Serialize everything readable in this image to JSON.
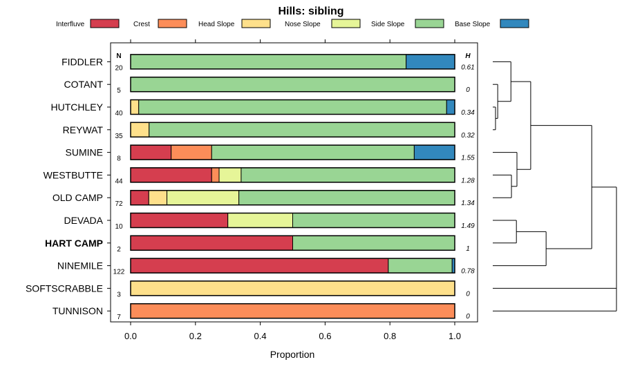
{
  "chart_data": {
    "type": "bar",
    "orientation": "horizontal-stacked",
    "title": "Hills: sibling",
    "xlabel": "Proportion",
    "ylabel": "",
    "xlim": [
      0,
      1
    ],
    "xticks": [
      "0.0",
      "0.2",
      "0.4",
      "0.6",
      "0.8",
      "1.0"
    ],
    "xtick_values": [
      0,
      0.2,
      0.4,
      0.6,
      0.8,
      1.0
    ],
    "n_header": "N",
    "h_header": "H",
    "legend": [
      {
        "name": "Interfluve",
        "color": "#D53E4F"
      },
      {
        "name": "Crest",
        "color": "#FC8D59"
      },
      {
        "name": "Head Slope",
        "color": "#FEE08B"
      },
      {
        "name": "Nose Slope",
        "color": "#E6F598"
      },
      {
        "name": "Side Slope",
        "color": "#99D594"
      },
      {
        "name": "Base Slope",
        "color": "#3288BD"
      }
    ],
    "rows": [
      {
        "name": "FIDDLER",
        "n": "20",
        "h": "0.61",
        "bold": false,
        "values": [
          0,
          0,
          0,
          0,
          0.85,
          0.15
        ]
      },
      {
        "name": "COTANT",
        "n": "5",
        "h": "0",
        "bold": false,
        "values": [
          0,
          0,
          0,
          0,
          1.0,
          0
        ]
      },
      {
        "name": "HUTCHLEY",
        "n": "40",
        "h": "0.34",
        "bold": false,
        "values": [
          0,
          0,
          0.025,
          0,
          0.95,
          0.025
        ]
      },
      {
        "name": "REYWAT",
        "n": "35",
        "h": "0.32",
        "bold": false,
        "values": [
          0,
          0,
          0.057,
          0,
          0.943,
          0
        ]
      },
      {
        "name": "SUMINE",
        "n": "8",
        "h": "1.55",
        "bold": false,
        "values": [
          0.125,
          0.125,
          0,
          0,
          0.625,
          0.125
        ]
      },
      {
        "name": "WESTBUTTE",
        "n": "44",
        "h": "1.28",
        "bold": false,
        "values": [
          0.25,
          0.023,
          0,
          0.068,
          0.659,
          0
        ]
      },
      {
        "name": "OLD CAMP",
        "n": "72",
        "h": "1.34",
        "bold": false,
        "values": [
          0.056,
          0,
          0.056,
          0.222,
          0.666,
          0
        ]
      },
      {
        "name": "DEVADA",
        "n": "10",
        "h": "1.49",
        "bold": false,
        "values": [
          0.3,
          0,
          0,
          0.2,
          0.5,
          0
        ]
      },
      {
        "name": "HART CAMP",
        "n": "2",
        "h": "1",
        "bold": true,
        "values": [
          0.5,
          0,
          0,
          0,
          0.5,
          0
        ]
      },
      {
        "name": "NINEMILE",
        "n": "122",
        "h": "0.78",
        "bold": false,
        "values": [
          0.795,
          0,
          0,
          0,
          0.197,
          0.008
        ]
      },
      {
        "name": "SOFTSCRABBLE",
        "n": "3",
        "h": "0",
        "bold": false,
        "values": [
          0,
          0,
          1.0,
          0,
          0,
          0
        ]
      },
      {
        "name": "TUNNISON",
        "n": "7",
        "h": "0",
        "bold": false,
        "values": [
          0,
          1.0,
          0,
          0,
          0,
          0
        ]
      }
    ],
    "dendrogram": {
      "type": "hierarchical-clustering",
      "leaf_order": [
        "FIDDLER",
        "COTANT",
        "HUTCHLEY",
        "REYWAT",
        "SUMINE",
        "WESTBUTTE",
        "OLD CAMP",
        "DEVADA",
        "HART CAMP",
        "NINEMILE",
        "SOFTSCRABBLE",
        "TUNNISON"
      ],
      "merges": [
        {
          "a": 2,
          "b": 3,
          "height": 0.05
        },
        {
          "a": 1,
          "b": "m0",
          "height": 0.09
        },
        {
          "a": 5,
          "b": 6,
          "height": 0.34
        },
        {
          "a": 0,
          "b": "m1",
          "height": 0.33
        },
        {
          "a": 7,
          "b": 8,
          "height": 0.43
        },
        {
          "a": 4,
          "b": "m2",
          "height": 0.44
        },
        {
          "a": "m3",
          "b": "m5",
          "height": 0.69
        },
        {
          "a": 9,
          "b": "m4",
          "height": 0.97
        },
        {
          "a": "m6",
          "b": "m7",
          "height": 1.8
        },
        {
          "a": 10,
          "b": 11,
          "height": 2.25
        },
        {
          "a": "m8",
          "b": "m9",
          "height": 2.25
        }
      ],
      "max_height": 2.25
    }
  }
}
